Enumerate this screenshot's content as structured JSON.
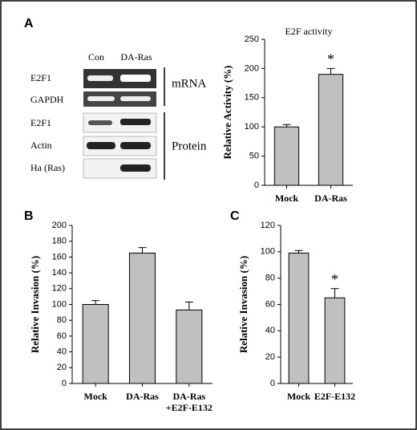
{
  "panels": [
    "A",
    "B",
    "C"
  ],
  "blot": {
    "columns": [
      "Con",
      "DA-Ras"
    ],
    "rows": [
      "E2F1",
      "GAPDH",
      "E2F1",
      "Actin",
      "Ha (Ras)"
    ],
    "groups": [
      "mRNA",
      "Protein"
    ]
  },
  "chart_data": [
    {
      "type": "bar",
      "title": "E2F activity",
      "y_label": "Relative Activity (%)",
      "categories": [
        "Mock",
        "DA-Ras"
      ],
      "values": [
        100,
        190
      ],
      "errors": [
        4,
        10
      ],
      "color": "#c0c0c0",
      "ylim": [
        0,
        250
      ],
      "yticks": [
        0,
        50,
        100,
        150,
        200,
        250
      ],
      "annotations": [
        {
          "text": "*",
          "category": "DA-Ras"
        }
      ]
    },
    {
      "type": "bar",
      "y_label": "Relative Invasion (%)",
      "categories": [
        "Mock",
        "DA-Ras",
        "DA-Ras\n+E2F-E132"
      ],
      "values": [
        100,
        165,
        93
      ],
      "errors": [
        5,
        7,
        10
      ],
      "color": "#c0c0c0",
      "ylim": [
        0,
        200
      ],
      "yticks": [
        0,
        20,
        40,
        60,
        80,
        100,
        120,
        140,
        160,
        180,
        200
      ]
    },
    {
      "type": "bar",
      "y_label": "Relative Invasion (%)",
      "categories": [
        "Mock",
        "E2F-E132"
      ],
      "values": [
        99,
        65
      ],
      "errors": [
        2,
        7
      ],
      "color": "#c0c0c0",
      "ylim": [
        0,
        120
      ],
      "yticks": [
        0,
        20,
        40,
        60,
        80,
        100,
        120
      ],
      "annotations": [
        {
          "text": "*",
          "category": "E2F-E132"
        }
      ]
    }
  ]
}
